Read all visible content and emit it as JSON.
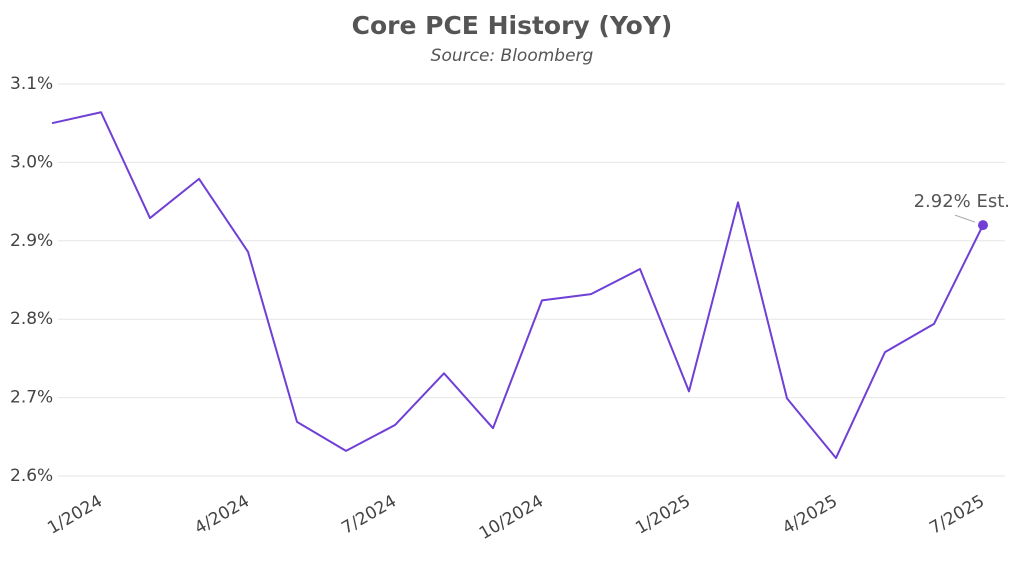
{
  "chart_data": {
    "type": "line",
    "title": "Core PCE History (YoY)",
    "subtitle": "Source: Bloomberg",
    "categories": [
      null,
      "1/2024",
      null,
      null,
      "4/2024",
      null,
      null,
      "7/2024",
      null,
      null,
      "10/2024",
      null,
      null,
      "1/2025",
      null,
      null,
      "4/2025",
      null,
      null,
      "7/2025"
    ],
    "series": [
      {
        "name": "Core PCE",
        "color": "#6f3fd6",
        "values": [
          3.05,
          3.064,
          2.929,
          2.979,
          2.886,
          2.669,
          2.632,
          2.665,
          2.731,
          2.661,
          2.824,
          2.832,
          2.864,
          2.708,
          2.949,
          2.699,
          2.623,
          2.758,
          2.794,
          2.92
        ]
      }
    ],
    "annotation": "2.92% Est.",
    "ylim": [
      2.6,
      3.1
    ],
    "yticks": [
      {
        "value": 2.6,
        "label": "2.6%"
      },
      {
        "value": 2.7,
        "label": "2.7%"
      },
      {
        "value": 2.8,
        "label": "2.8%"
      },
      {
        "value": 2.9,
        "label": "2.9%"
      },
      {
        "value": 3.0,
        "label": "3.0%"
      },
      {
        "value": 3.1,
        "label": "3.1%"
      }
    ],
    "grid": true
  }
}
